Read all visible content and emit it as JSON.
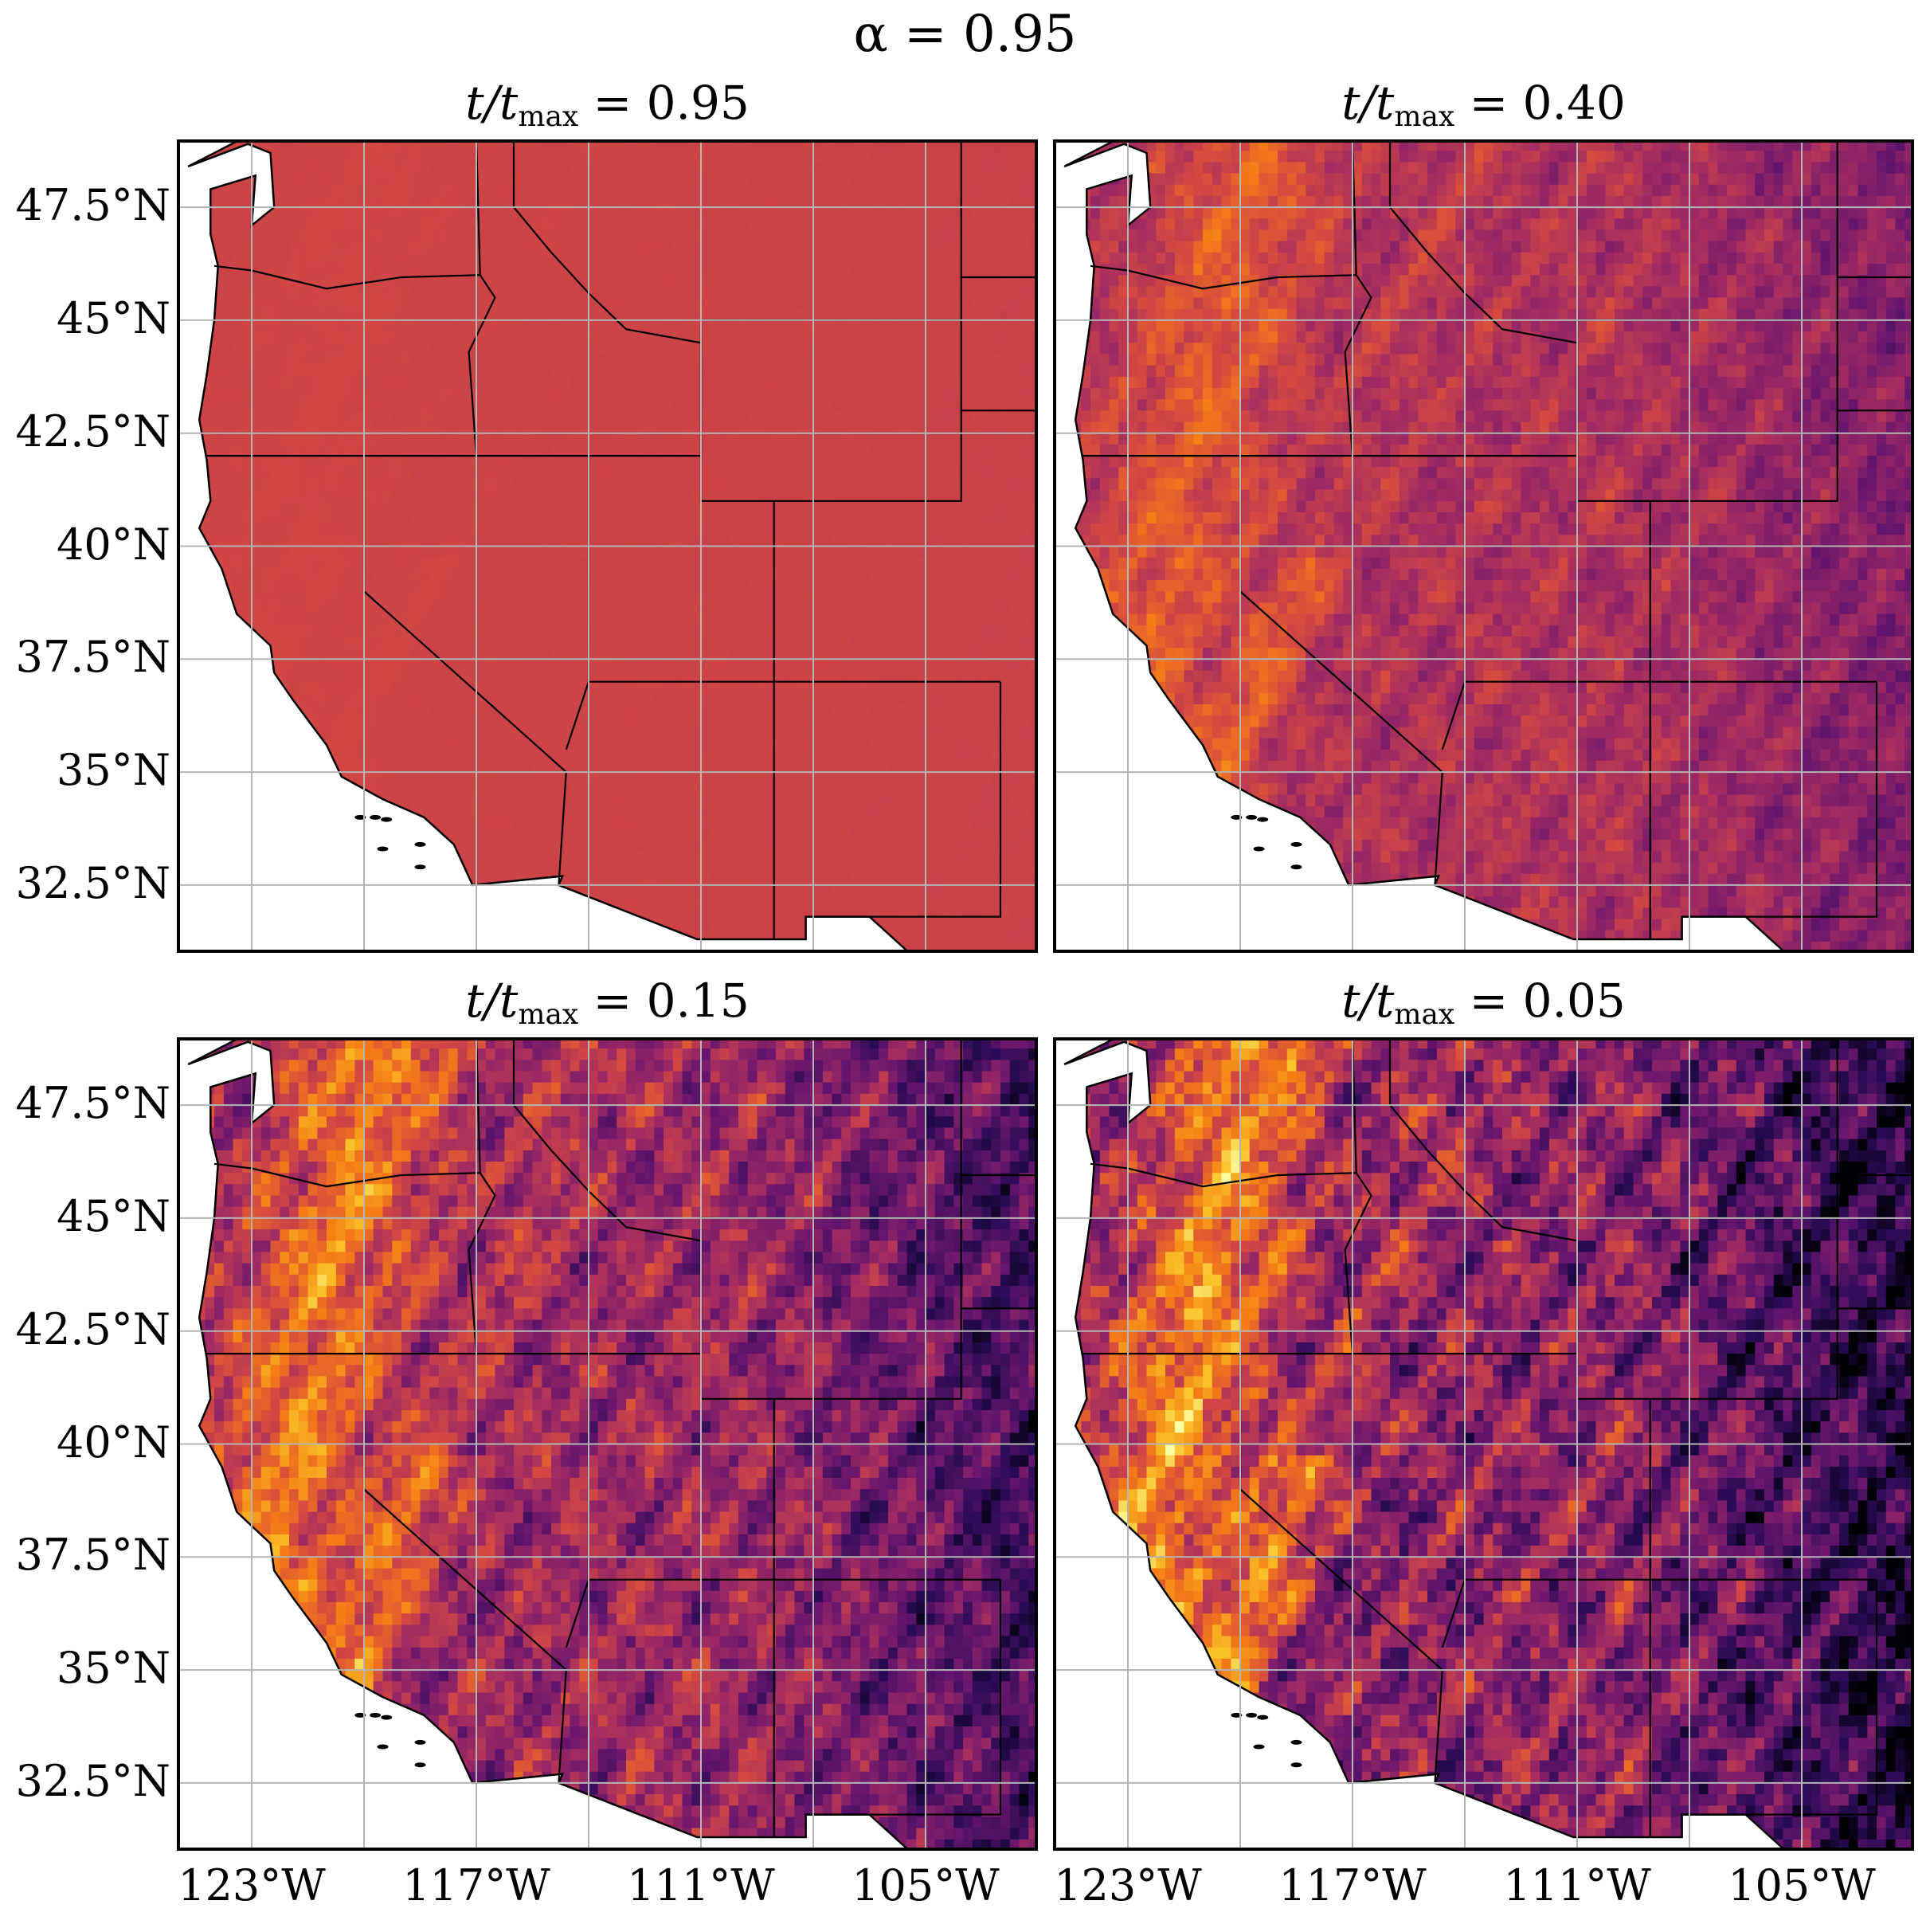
{
  "figure": {
    "suptitle": "α = 0.95",
    "title_prefix": "t/t",
    "title_subscript": "max",
    "title_infix": " = "
  },
  "panels": [
    {
      "id": "top-left",
      "t_over_tmax": "0.95",
      "colormap_level": 0.55,
      "variability": 0.02,
      "grid_seed": 11
    },
    {
      "id": "top-right",
      "t_over_tmax": "0.40",
      "colormap_level": 0.47,
      "variability": 0.3,
      "grid_seed": 23
    },
    {
      "id": "bottom-left",
      "t_over_tmax": "0.15",
      "colormap_level": 0.42,
      "variability": 0.55,
      "grid_seed": 37
    },
    {
      "id": "bottom-right",
      "t_over_tmax": "0.05",
      "colormap_level": 0.38,
      "variability": 0.68,
      "grid_seed": 53
    }
  ],
  "axes": {
    "lon_range": [
      -125.0,
      -102.0
    ],
    "lat_range": [
      31.0,
      49.0
    ],
    "y_ticks": [
      {
        "value": 47.5,
        "label": "47.5°N"
      },
      {
        "value": 45.0,
        "label": "45°N"
      },
      {
        "value": 42.5,
        "label": "42.5°N"
      },
      {
        "value": 40.0,
        "label": "40°N"
      },
      {
        "value": 37.5,
        "label": "37.5°N"
      },
      {
        "value": 35.0,
        "label": "35°N"
      },
      {
        "value": 32.5,
        "label": "32.5°N"
      }
    ],
    "x_ticks": [
      {
        "value": -123,
        "label": "123°W"
      },
      {
        "value": -117,
        "label": "117°W"
      },
      {
        "value": -111,
        "label": "111°W"
      },
      {
        "value": -105,
        "label": "105°W"
      }
    ],
    "grid_lons": [
      -123,
      -120,
      -117,
      -114,
      -111,
      -108,
      -105
    ],
    "grid_lats": [
      47.5,
      45.0,
      42.5,
      40.0,
      37.5,
      35.0,
      32.5
    ]
  },
  "colormap": "inferno",
  "colors": {
    "grid": "#b4b4b4",
    "border": "#000000",
    "ocean": "#ffffff"
  }
}
